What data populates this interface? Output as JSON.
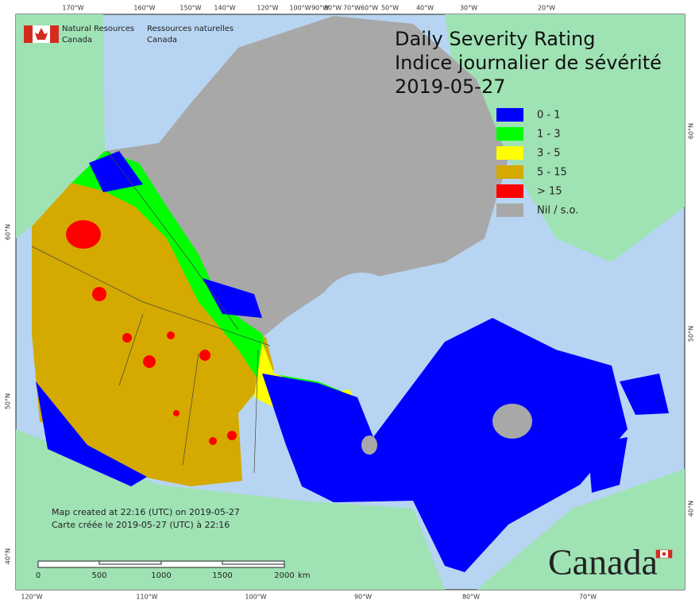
{
  "header": {
    "title_en": "Daily Severity Rating",
    "title_fr": "Indice journalier de sévérité",
    "date": "2019-05-27"
  },
  "agency": {
    "en_line1": "Natural Resources",
    "en_line2": "Canada",
    "fr_line1": "Ressources naturelles",
    "fr_line2": "Canada"
  },
  "legend": [
    {
      "label": "0 - 1",
      "color": "#0000ff"
    },
    {
      "label": "1 - 3",
      "color": "#00ff00"
    },
    {
      "label": "3 - 5",
      "color": "#ffff00"
    },
    {
      "label": "5 - 15",
      "color": "#d4aa00"
    },
    {
      "label": "> 15",
      "color": "#ff0000"
    },
    {
      "label": "Nil / s.o.",
      "color": "#a8a8a8"
    }
  ],
  "graticule": {
    "top": [
      "170°W",
      "160°W",
      "150°W",
      "140°W",
      "120°W",
      "100°W",
      "90°W",
      "80°W",
      "70°W",
      "60°W",
      "50°W",
      "40°W",
      "30°W",
      "20°W"
    ],
    "bottom": [
      "120°W",
      "110°W",
      "100°W",
      "90°W",
      "80°W",
      "70°W"
    ],
    "left": [
      "60°N",
      "50°N",
      "40°N"
    ],
    "right": [
      "60°N",
      "50°N",
      "40°N"
    ]
  },
  "notes": [
    "Map created at 22:16 (UTC) on 2019-05-27",
    "Carte créée le 2019-05-27 (UTC) à 22:16"
  ],
  "scale": {
    "labels": [
      "0",
      "500",
      "1000",
      "1500",
      "2000"
    ],
    "unit": "km"
  },
  "wordmark": "Canada"
}
